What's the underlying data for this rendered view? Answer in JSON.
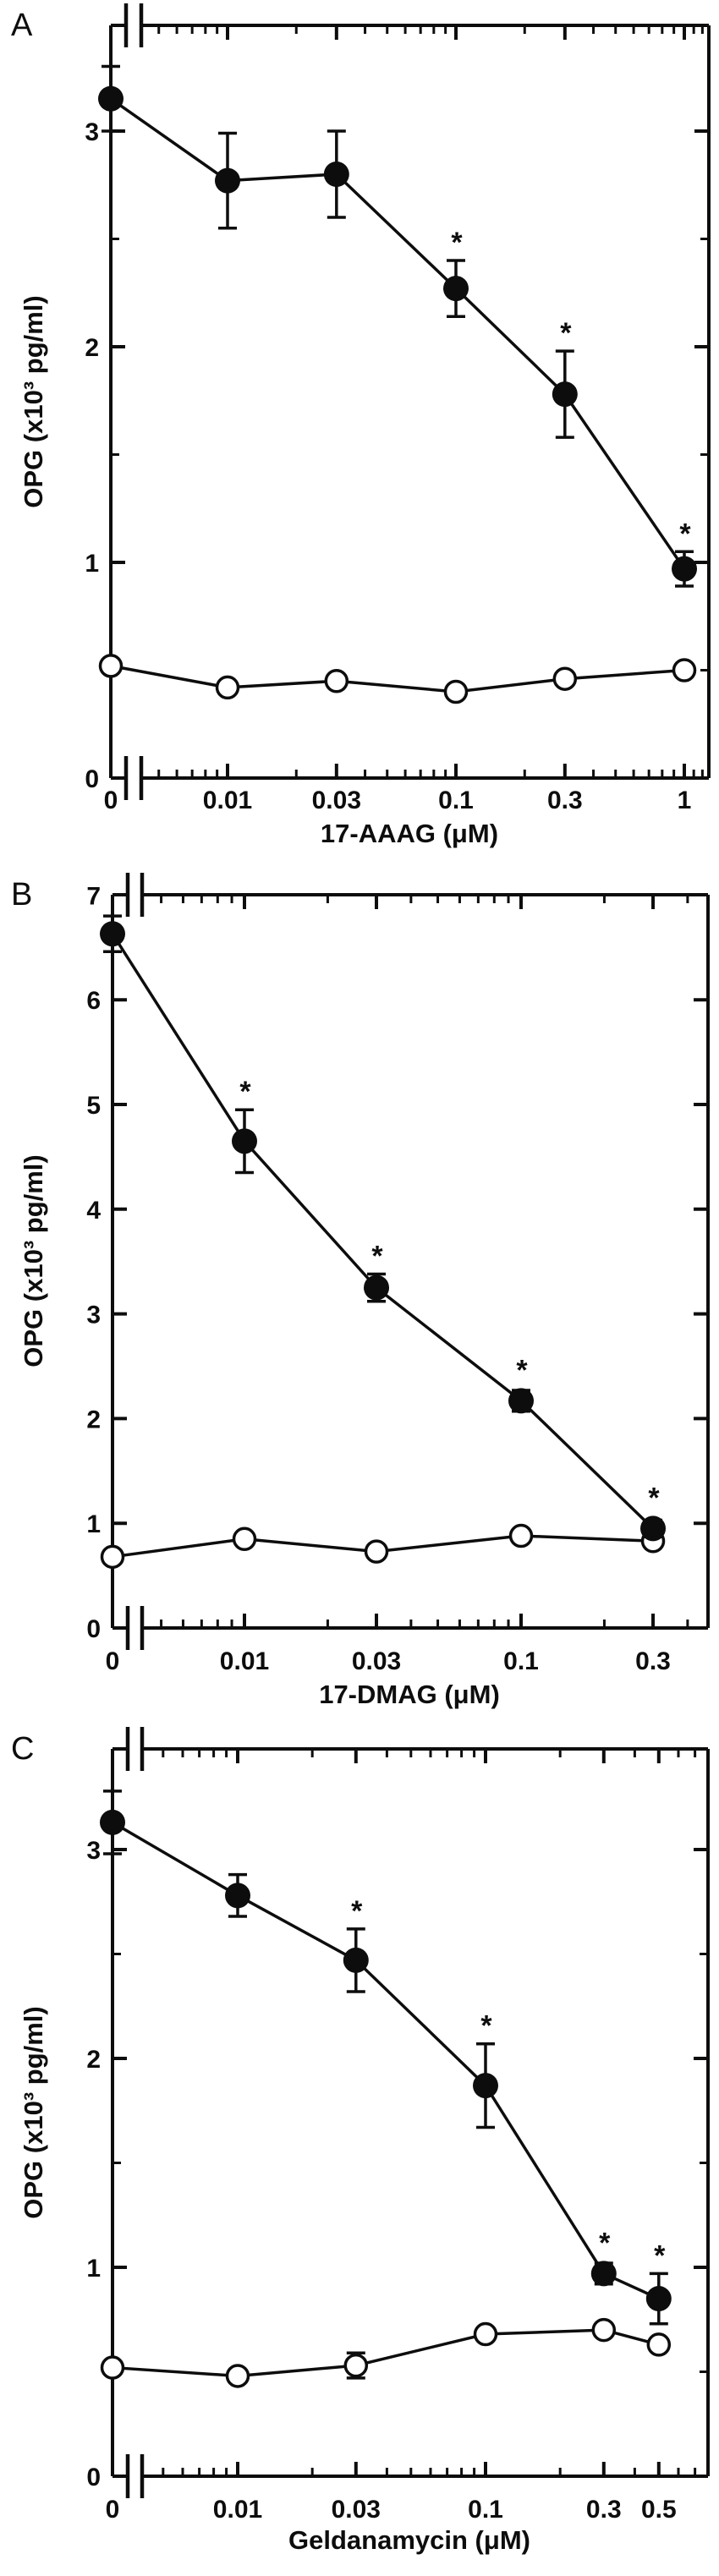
{
  "figure": {
    "significance_marker": "*",
    "y_axis_title_shared": "OPG (x10³ pg/ml)",
    "marker_styles": {
      "filled_circles": "#0d0d0d",
      "open_circles": "#ffffff"
    }
  },
  "chart_data": [
    {
      "type": "line",
      "panel_label": "A",
      "title": "",
      "ylabel": "OPG (x10³ pg/ml)",
      "xlabel": "17-AAAG (μM)",
      "xscale": "log with zero + axis break",
      "ylim": [
        0,
        3.5
      ],
      "x_values": [
        0,
        0.01,
        0.03,
        0.1,
        0.3,
        1
      ],
      "x_tick_labels": [
        "0",
        "0.01",
        "0.03",
        "0.1",
        "0.3",
        "1"
      ],
      "y_major_ticks": [
        0,
        1,
        2,
        3
      ],
      "y_tick_labels": [
        "0",
        "1",
        "2",
        "3"
      ],
      "y_minor_ticks": [
        0.5,
        1.5,
        2.5
      ],
      "series": [
        {
          "name": "open_circles",
          "marker": "open",
          "values": [
            0.52,
            0.42,
            0.45,
            0.4,
            0.46,
            0.5
          ],
          "errors": [
            0,
            0,
            0,
            0,
            0,
            0
          ],
          "significant": [
            false,
            false,
            false,
            false,
            false,
            false
          ]
        },
        {
          "name": "filled_circles",
          "marker": "filled",
          "values": [
            3.15,
            2.77,
            2.8,
            2.27,
            1.78,
            0.97
          ],
          "errors": [
            0.15,
            0.22,
            0.2,
            0.13,
            0.2,
            0.08
          ],
          "significant": [
            false,
            false,
            false,
            true,
            true,
            true
          ]
        }
      ]
    },
    {
      "type": "line",
      "panel_label": "B",
      "title": "",
      "ylabel": "OPG (x10³ pg/ml)",
      "xlabel": "17-DMAG (μM)",
      "xscale": "log with zero + axis break",
      "ylim": [
        0,
        7
      ],
      "x_values": [
        0,
        0.01,
        0.03,
        0.1,
        0.3
      ],
      "x_tick_labels": [
        "0",
        "0.01",
        "0.03",
        "0.1",
        "0.3"
      ],
      "y_major_ticks": [
        0,
        1,
        2,
        3,
        4,
        5,
        6,
        7
      ],
      "y_tick_labels": [
        "0",
        "1",
        "2",
        "3",
        "4",
        "5",
        "6",
        "7"
      ],
      "y_minor_ticks": [],
      "series": [
        {
          "name": "open_circles",
          "marker": "open",
          "values": [
            0.68,
            0.85,
            0.73,
            0.88,
            0.83
          ],
          "errors": [
            0,
            0,
            0,
            0,
            0
          ],
          "significant": [
            false,
            false,
            false,
            false,
            false
          ]
        },
        {
          "name": "filled_circles",
          "marker": "filled",
          "values": [
            6.63,
            4.65,
            3.25,
            2.17,
            0.95
          ],
          "errors": [
            0.17,
            0.3,
            0.13,
            0.1,
            0.08
          ],
          "significant": [
            false,
            true,
            true,
            true,
            true
          ]
        }
      ]
    },
    {
      "type": "line",
      "panel_label": "C",
      "title": "",
      "ylabel": "OPG (x10³ pg/ml)",
      "xlabel": "Geldanamycin (μM)",
      "xscale": "log with zero + axis break",
      "ylim": [
        0,
        3.5
      ],
      "x_values": [
        0,
        0.01,
        0.03,
        0.1,
        0.3,
        0.5
      ],
      "x_tick_labels": [
        "0",
        "0.01",
        "0.03",
        "0.1",
        "0.3",
        "0.5"
      ],
      "y_major_ticks": [
        0,
        1,
        2,
        3
      ],
      "y_tick_labels": [
        "0",
        "1",
        "2",
        "3"
      ],
      "y_minor_ticks": [
        0.5,
        1.5,
        2.5
      ],
      "series": [
        {
          "name": "open_circles",
          "marker": "open",
          "values": [
            0.52,
            0.48,
            0.53,
            0.68,
            0.7,
            0.63
          ],
          "errors": [
            0,
            0,
            0.06,
            0,
            0,
            0
          ],
          "significant": [
            false,
            false,
            false,
            false,
            false,
            false
          ]
        },
        {
          "name": "filled_circles",
          "marker": "filled",
          "values": [
            3.13,
            2.78,
            2.47,
            1.87,
            0.97,
            0.85
          ],
          "errors": [
            0.15,
            0.1,
            0.15,
            0.2,
            0.05,
            0.12
          ],
          "significant": [
            false,
            false,
            true,
            true,
            true,
            true
          ]
        }
      ]
    }
  ]
}
